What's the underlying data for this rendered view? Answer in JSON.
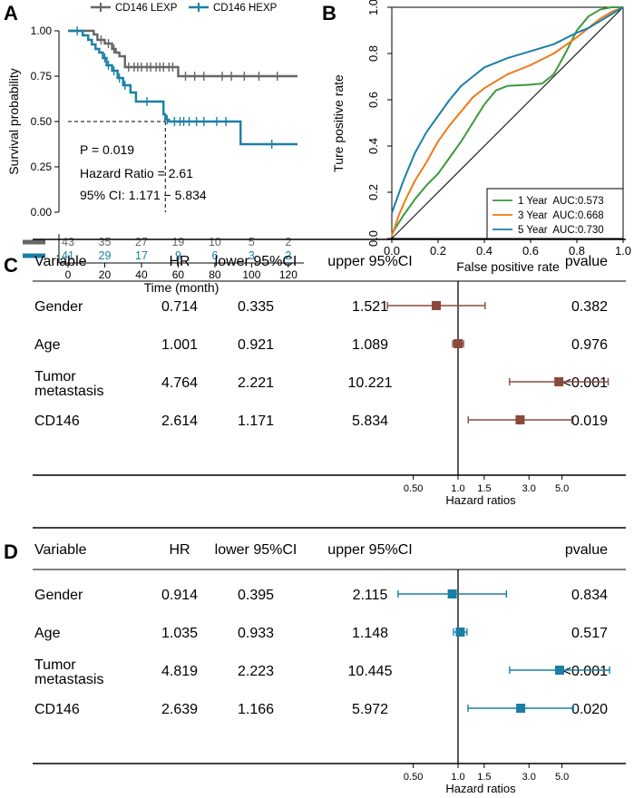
{
  "colors": {
    "lexp": "#666666",
    "hexp": "#1a7fa6",
    "forest_c": "#8b4a3c",
    "forest_d": "#1a7fa6",
    "roc_1y": "#3a9a3a",
    "roc_3y": "#f07a1a",
    "roc_5y": "#1a7fa6"
  },
  "chart_data": [
    {
      "panel": "A",
      "type": "line",
      "subtype": "kaplan-meier",
      "ylabel": "Survival probability",
      "xlabel": "Time (month)",
      "xlim": [
        0,
        125
      ],
      "ylim": [
        0,
        1
      ],
      "xticks": [
        "0",
        "20",
        "40",
        "60",
        "80",
        "100",
        "120"
      ],
      "yticks": [
        "0.00",
        "0.25",
        "0.50",
        "0.75",
        "1.00"
      ],
      "legend": [
        "CD146 LEXP",
        "CD146 HEXP"
      ],
      "series": [
        {
          "name": "CD146 LEXP",
          "steps": [
            [
              0,
              1
            ],
            [
              14,
              0.98
            ],
            [
              16,
              0.95
            ],
            [
              20,
              0.93
            ],
            [
              24,
              0.9
            ],
            [
              26,
              0.88
            ],
            [
              28,
              0.86
            ],
            [
              31,
              0.8
            ],
            [
              58,
              0.8
            ],
            [
              60,
              0.75
            ],
            [
              125,
              0.75
            ]
          ],
          "censor_times": [
            18,
            22,
            25,
            33,
            36,
            38,
            40,
            43,
            45,
            48,
            50,
            52,
            55,
            57,
            64,
            69,
            74,
            84,
            89,
            96,
            104,
            114
          ]
        },
        {
          "name": "CD146 HEXP",
          "steps": [
            [
              0,
              1
            ],
            [
              8,
              0.975
            ],
            [
              11,
              0.95
            ],
            [
              13,
              0.925
            ],
            [
              15,
              0.9
            ],
            [
              17,
              0.88
            ],
            [
              19,
              0.85
            ],
            [
              21,
              0.81
            ],
            [
              24,
              0.78
            ],
            [
              27,
              0.74
            ],
            [
              30,
              0.7
            ],
            [
              34,
              0.66
            ],
            [
              37,
              0.61
            ],
            [
              52,
              0.54
            ],
            [
              53,
              0.51
            ],
            [
              55,
              0.5
            ],
            [
              93,
              0.5
            ],
            [
              94,
              0.375
            ],
            [
              125,
              0.375
            ]
          ],
          "censor_times": [
            5,
            20,
            22,
            25,
            28,
            31,
            43,
            54,
            58,
            61,
            63,
            66,
            70,
            74,
            81,
            86,
            111
          ]
        }
      ],
      "median_marker": {
        "x": 53,
        "y": 0.5
      },
      "annotations": [
        "P = 0.019",
        "Hazard Ratio = 2.61",
        "95% CI: 1.171 − 5.834"
      ],
      "risk_table": {
        "times": [
          0,
          20,
          40,
          60,
          80,
          100,
          120
        ],
        "LEXP": [
          "43",
          "35",
          "27",
          "19",
          "10",
          "5",
          "2"
        ],
        "HEXP": [
          "41",
          "29",
          "17",
          "9",
          "6",
          "3",
          "2"
        ]
      }
    },
    {
      "panel": "B",
      "type": "line",
      "subtype": "roc",
      "xlabel": "False positive rate",
      "ylabel": "Ture positive rate",
      "xlim": [
        0,
        1
      ],
      "ylim": [
        0,
        1
      ],
      "xticks": [
        "0.0",
        "0.2",
        "0.4",
        "0.6",
        "0.8",
        "1.0"
      ],
      "yticks": [
        "0.0",
        "0.2",
        "0.4",
        "0.6",
        "0.8",
        "1.0"
      ],
      "legend": [
        "1 Year  AUC:0.573",
        "3 Year  AUC:0.668",
        "5 Year  AUC:0.730"
      ],
      "series": [
        {
          "name": "1 Year",
          "auc": 0.573,
          "points": [
            [
              0,
              0.02
            ],
            [
              0.05,
              0.1
            ],
            [
              0.1,
              0.17
            ],
            [
              0.15,
              0.23
            ],
            [
              0.2,
              0.28
            ],
            [
              0.25,
              0.35
            ],
            [
              0.3,
              0.42
            ],
            [
              0.35,
              0.5
            ],
            [
              0.4,
              0.58
            ],
            [
              0.45,
              0.64
            ],
            [
              0.5,
              0.66
            ],
            [
              0.6,
              0.665
            ],
            [
              0.65,
              0.67
            ],
            [
              0.7,
              0.71
            ],
            [
              0.75,
              0.8
            ],
            [
              0.8,
              0.9
            ],
            [
              0.85,
              0.96
            ],
            [
              0.9,
              0.99
            ],
            [
              0.95,
              1.0
            ],
            [
              1,
              1
            ]
          ]
        },
        {
          "name": "3 Year",
          "auc": 0.668,
          "points": [
            [
              0,
              0.01
            ],
            [
              0.03,
              0.1
            ],
            [
              0.06,
              0.17
            ],
            [
              0.1,
              0.25
            ],
            [
              0.15,
              0.33
            ],
            [
              0.2,
              0.42
            ],
            [
              0.25,
              0.49
            ],
            [
              0.3,
              0.55
            ],
            [
              0.35,
              0.61
            ],
            [
              0.4,
              0.65
            ],
            [
              0.5,
              0.71
            ],
            [
              0.6,
              0.75
            ],
            [
              0.7,
              0.8
            ],
            [
              0.8,
              0.87
            ],
            [
              0.85,
              0.91
            ],
            [
              0.9,
              0.95
            ],
            [
              0.95,
              0.98
            ],
            [
              1,
              1
            ]
          ]
        },
        {
          "name": "5 Year",
          "auc": 0.73,
          "points": [
            [
              0,
              0.11
            ],
            [
              0.05,
              0.25
            ],
            [
              0.1,
              0.37
            ],
            [
              0.15,
              0.46
            ],
            [
              0.2,
              0.53
            ],
            [
              0.25,
              0.6
            ],
            [
              0.3,
              0.66
            ],
            [
              0.35,
              0.7
            ],
            [
              0.4,
              0.74
            ],
            [
              0.5,
              0.78
            ],
            [
              0.6,
              0.81
            ],
            [
              0.7,
              0.84
            ],
            [
              0.8,
              0.89
            ],
            [
              0.85,
              0.91
            ],
            [
              0.9,
              0.94
            ],
            [
              0.95,
              0.97
            ],
            [
              1,
              1
            ]
          ]
        }
      ]
    },
    {
      "panel": "C",
      "type": "table",
      "subtype": "forest",
      "headers": [
        "Variable",
        "HR",
        "lower 95%CI",
        "upper 95%CI",
        "pvalue"
      ],
      "rows": [
        {
          "variable": [
            "Gender"
          ],
          "hr": "0.714",
          "lower": "0.335",
          "upper": "1.521",
          "pvalue": "0.382",
          "v": [
            0.714,
            0.335,
            1.521
          ]
        },
        {
          "variable": [
            "Age"
          ],
          "hr": "1.001",
          "lower": "0.921",
          "upper": "1.089",
          "pvalue": "0.976",
          "v": [
            1.001,
            0.921,
            1.089
          ]
        },
        {
          "variable": [
            "Tumor",
            "metastasis"
          ],
          "hr": "4.764",
          "lower": "2.221",
          "upper": "10.221",
          "pvalue": "<0.001",
          "v": [
            4.764,
            2.221,
            10.221
          ]
        },
        {
          "variable": [
            "CD146"
          ],
          "hr": "2.614",
          "lower": "1.171",
          "upper": "5.834",
          "pvalue": "0.019",
          "v": [
            2.614,
            1.171,
            5.834
          ]
        }
      ],
      "axis_label": "Hazard ratios",
      "ticks": [
        "0.50",
        "1.0",
        "1.5",
        "3.0",
        "5.0"
      ],
      "tick_values": [
        0.5,
        1.0,
        1.5,
        3.0,
        5.0
      ]
    },
    {
      "panel": "D",
      "type": "table",
      "subtype": "forest",
      "headers": [
        "Variable",
        "HR",
        "lower 95%CI",
        "upper 95%CI",
        "pvalue"
      ],
      "rows": [
        {
          "variable": [
            "Gender"
          ],
          "hr": "0.914",
          "lower": "0.395",
          "upper": "2.115",
          "pvalue": "0.834",
          "v": [
            0.914,
            0.395,
            2.115
          ]
        },
        {
          "variable": [
            "Age"
          ],
          "hr": "1.035",
          "lower": "0.933",
          "upper": "1.148",
          "pvalue": "0.517",
          "v": [
            1.035,
            0.933,
            1.148
          ]
        },
        {
          "variable": [
            "Tumor",
            "metastasis"
          ],
          "hr": "4.819",
          "lower": "2.223",
          "upper": "10.445",
          "pvalue": "<0.001",
          "v": [
            4.819,
            2.223,
            10.445
          ]
        },
        {
          "variable": [
            "CD146"
          ],
          "hr": "2.639",
          "lower": "1.166",
          "upper": "5.972",
          "pvalue": "0.020",
          "v": [
            2.639,
            1.166,
            5.972
          ]
        }
      ],
      "axis_label": "Hazard ratios",
      "ticks": [
        "0.50",
        "1.0",
        "1.5",
        "3.0",
        "5.0"
      ],
      "tick_values": [
        0.5,
        1.0,
        1.5,
        3.0,
        5.0
      ]
    }
  ],
  "panel_labels": [
    "A",
    "B",
    "C",
    "D"
  ]
}
